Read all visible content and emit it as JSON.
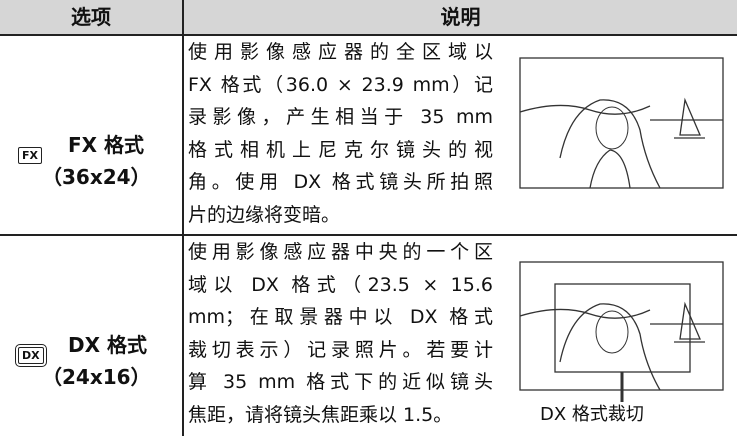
{
  "header": {
    "columns": [
      "选项",
      "说明"
    ]
  },
  "rows": [
    {
      "icon": "FX",
      "name": "FX 格式",
      "size": "（36x24）",
      "description": [
        "使用影像感应器的全区域以",
        "FX 格式（36.0 × 23.9 mm）记",
        "录影像，产生相当于 35 mm",
        "格式相机上尼克尔镜头的视",
        "角。使用 DX 格式镜头所拍照",
        "片的边缘将变暗。"
      ]
    },
    {
      "icon": "DX",
      "name": "DX 格式",
      "size": "（24x16）",
      "description": [
        "使用影像感应器中央的一个区",
        "域以 DX 格式（23.5 × 15.6",
        "mm；在取景器中以 DX 格式",
        "裁切表示）记录照片。若要计",
        "算 35 mm 格式下的近似镜头",
        "焦距，请将镜头焦距乘以 1.5。"
      ],
      "caption": "DX 格式裁切"
    }
  ]
}
